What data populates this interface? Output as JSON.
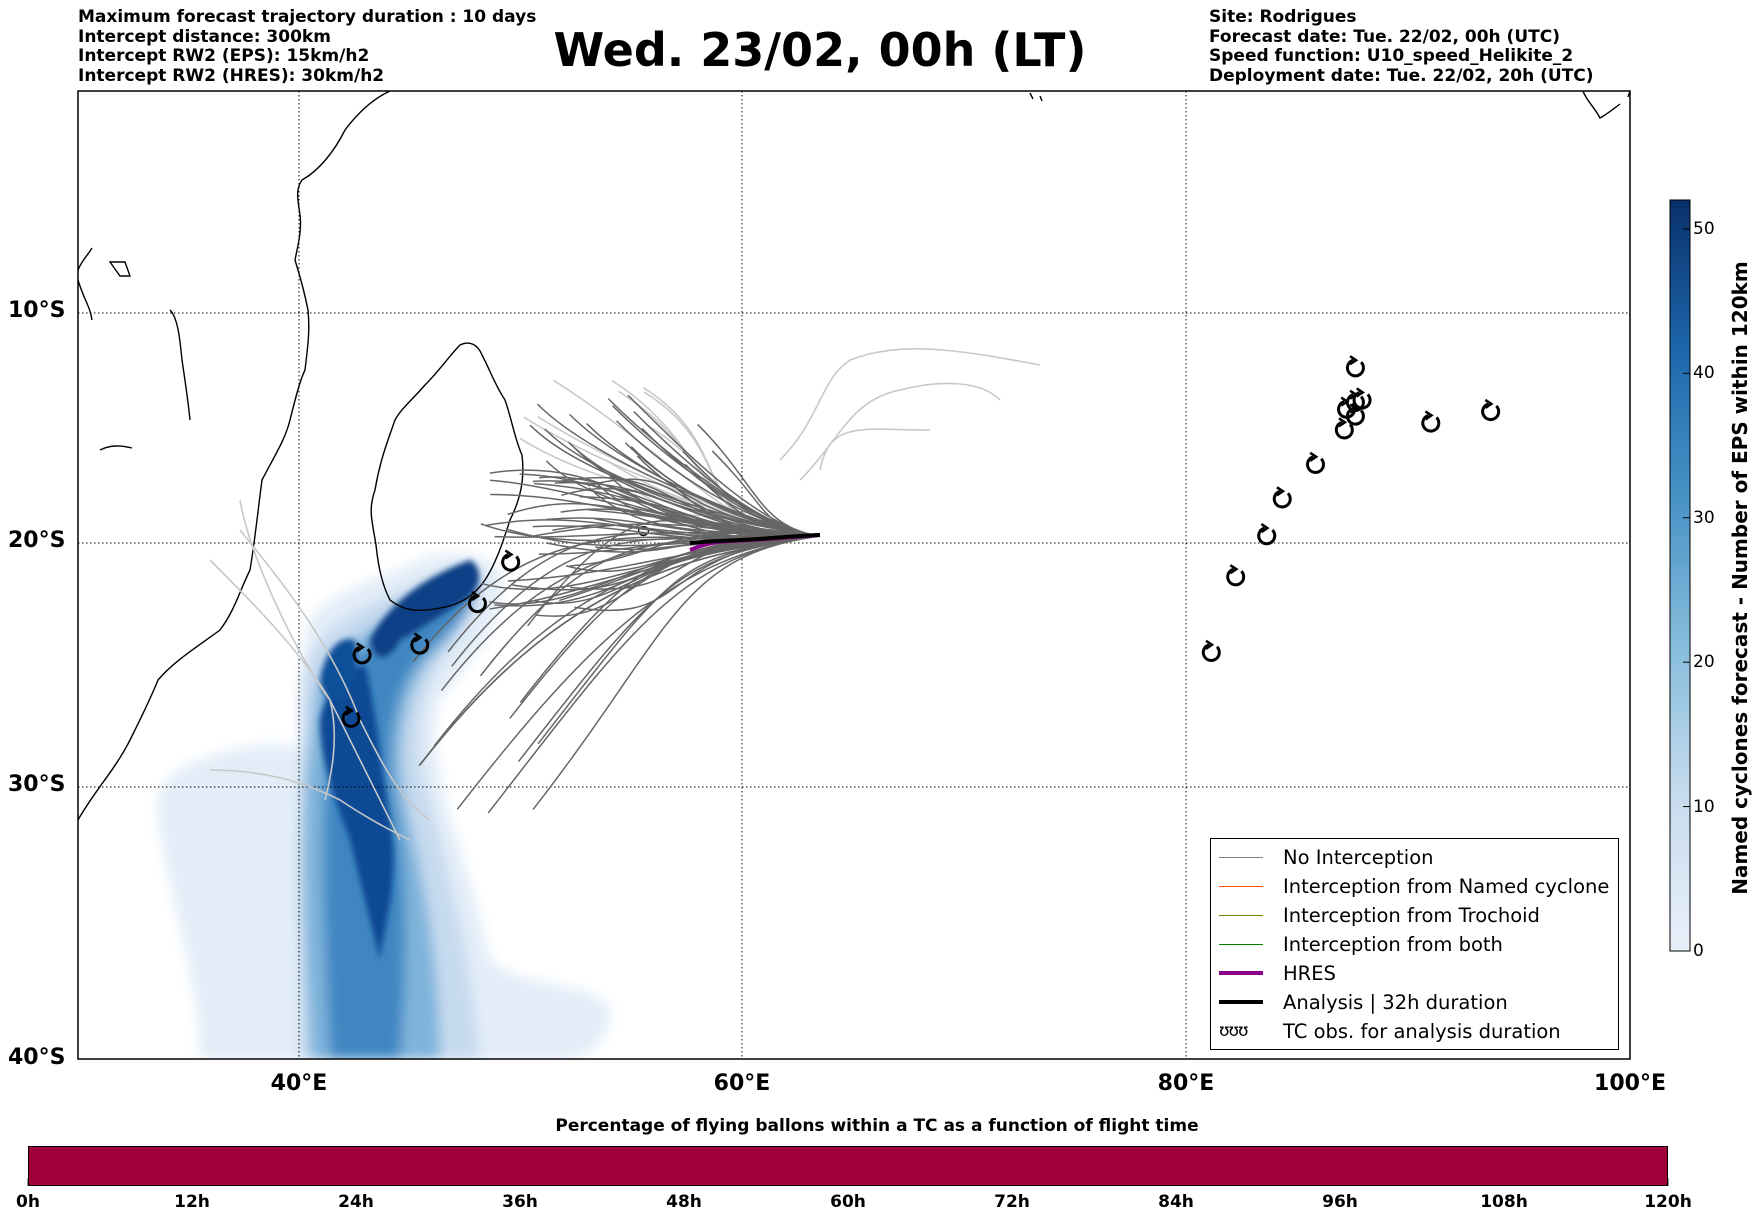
{
  "header_left": [
    "Maximum forecast trajectory duration : 10 days",
    "Intercept distance: 300km",
    "Intercept RW2 (EPS):  15km/h2",
    "Intercept RW2 (HRES): 30km/h2"
  ],
  "title": "Wed. 23/02, 00h (LT)",
  "header_right": [
    "Site: Rodrigues",
    "Forecast date: Tue. 22/02, 00h (UTC)",
    "Speed function: U10_speed_Helikite_2",
    "Deployment date: Tue. 22/02, 20h (UTC)"
  ],
  "map": {
    "lon_range": [
      30,
      100
    ],
    "lat_range": [
      -40,
      0
    ],
    "lon_ticks": [
      {
        "value": 40,
        "label": "40°E"
      },
      {
        "value": 60,
        "label": "60°E"
      },
      {
        "value": 80,
        "label": "80°E"
      },
      {
        "value": 100,
        "label": "100°E"
      }
    ],
    "lat_ticks": [
      {
        "value": -10,
        "label": "10°S"
      },
      {
        "value": -20,
        "label": "20°S"
      },
      {
        "value": -30,
        "label": "30°S"
      },
      {
        "value": -40,
        "label": "40°S"
      }
    ],
    "grid": "dotted",
    "site_lonlat": [
      63.4,
      -19.7
    ],
    "tc_observations": [
      [
        81.1,
        -24.5
      ],
      [
        82.2,
        -21.4
      ],
      [
        83.6,
        -19.7
      ],
      [
        84.3,
        -18.1
      ],
      [
        85.8,
        -16.6
      ],
      [
        87.1,
        -15.1
      ],
      [
        87.2,
        -14.2
      ],
      [
        87.6,
        -14.5
      ],
      [
        87.6,
        -13.9
      ],
      [
        87.9,
        -13.8
      ],
      [
        87.6,
        -12.4
      ],
      [
        91.0,
        -14.8
      ],
      [
        93.7,
        -14.3
      ],
      [
        49.5,
        -20.8
      ],
      [
        48.0,
        -22.5
      ],
      [
        45.4,
        -24.2
      ],
      [
        42.8,
        -24.6
      ],
      [
        42.3,
        -27.2
      ]
    ]
  },
  "legend": {
    "entries": [
      {
        "label": "No Interception",
        "color": "#808080",
        "width": 1
      },
      {
        "label": "Interception from Named cyclone",
        "color": "#ff5000",
        "width": 1
      },
      {
        "label": "Interception from Trochoid",
        "color": "#808000",
        "width": 1
      },
      {
        "label": "Interception from both",
        "color": "#008000",
        "width": 1
      },
      {
        "label": "HRES",
        "color": "#8b008b",
        "width": 4
      },
      {
        "label": "Analysis | 32h duration",
        "color": "#000000",
        "width": 4
      }
    ],
    "symbol_entry": {
      "symbol": "ʊʊʊ",
      "label": "TC obs. for analysis duration"
    }
  },
  "colorbar": {
    "title": "Named cyclones forecast - Number of EPS within 120km",
    "ticks": [
      "0",
      "10",
      "20",
      "30",
      "40",
      "50"
    ],
    "max_value": 52
  },
  "flight_time_bar": {
    "title": "Percentage of flying ballons within a TC as a function of flight time",
    "color": "#a0003c",
    "ticks": [
      "0h",
      "12h",
      "24h",
      "36h",
      "48h",
      "60h",
      "72h",
      "84h",
      "96h",
      "108h",
      "120h"
    ]
  }
}
